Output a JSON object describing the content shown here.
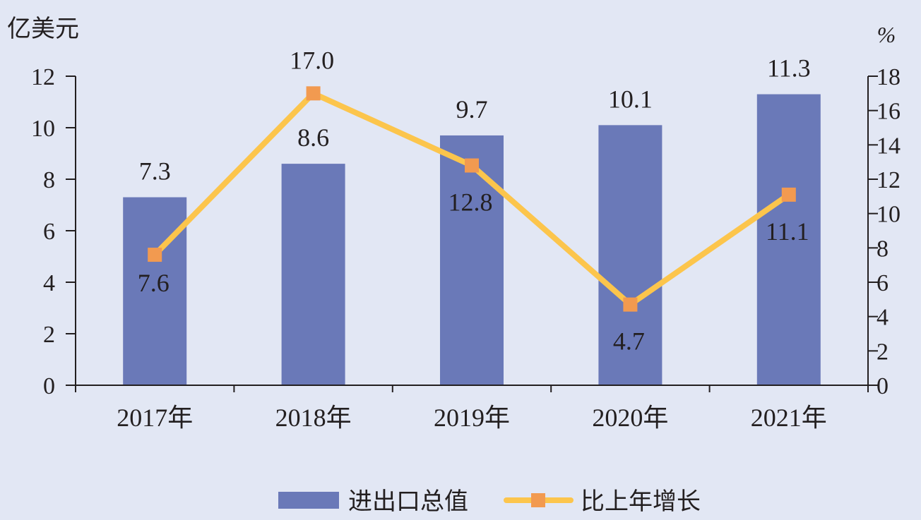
{
  "chart_data": {
    "type": "bar",
    "categories": [
      "2017年",
      "2018年",
      "2019年",
      "2020年",
      "2021年"
    ],
    "series": [
      {
        "name": "进出口总值",
        "type": "bar",
        "axis": "left",
        "values": [
          7.3,
          8.6,
          9.7,
          10.1,
          11.3
        ],
        "labels": [
          "7.3",
          "8.6",
          "9.7",
          "10.1",
          "11.3"
        ],
        "color": "#6a79b8"
      },
      {
        "name": "比上年增长",
        "type": "line",
        "axis": "right",
        "values": [
          7.6,
          17.0,
          12.8,
          4.7,
          11.1
        ],
        "labels": [
          "7.6",
          "17.0",
          "12.8",
          "4.7",
          "11.1"
        ],
        "color": "#fcc54c",
        "marker_color": "#f29a50"
      }
    ],
    "y_left": {
      "unit": "亿美元",
      "ylim": [
        0,
        12
      ],
      "ticks": [
        "0",
        "2",
        "4",
        "6",
        "8",
        "10",
        "12"
      ]
    },
    "y_right": {
      "unit": "%",
      "ylim": [
        0,
        18
      ],
      "ticks": [
        "0",
        "2",
        "4",
        "6",
        "8",
        "10",
        "12",
        "14",
        "16",
        "18"
      ]
    },
    "legend_position": "bottom-center",
    "grid": false,
    "background": "#e2e7f4"
  }
}
